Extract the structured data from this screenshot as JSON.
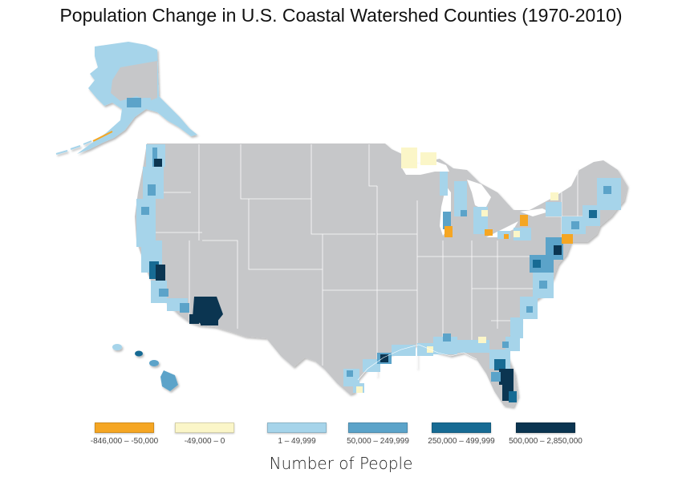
{
  "title": "Population Change in U.S. Coastal Watershed Counties (1970-2010)",
  "legend": {
    "title": "Number of People",
    "items": [
      {
        "label": "-846,000 – -50,000",
        "color": "#f5a623"
      },
      {
        "label": "-49,000 – 0",
        "color": "#fbf6c8"
      },
      {
        "label": "1 – 49,999",
        "color": "#a6d4ea"
      },
      {
        "label": "50,000 – 249,999",
        "color": "#5ba3c9"
      },
      {
        "label": "250,000 – 499,999",
        "color": "#176b94"
      },
      {
        "label": "500,000 – 2,850,000",
        "color": "#0b3551"
      }
    ]
  },
  "colors": {
    "non_coastal": "#c6c7c9",
    "state_border": "#ffffff",
    "background": "#ffffff"
  }
}
